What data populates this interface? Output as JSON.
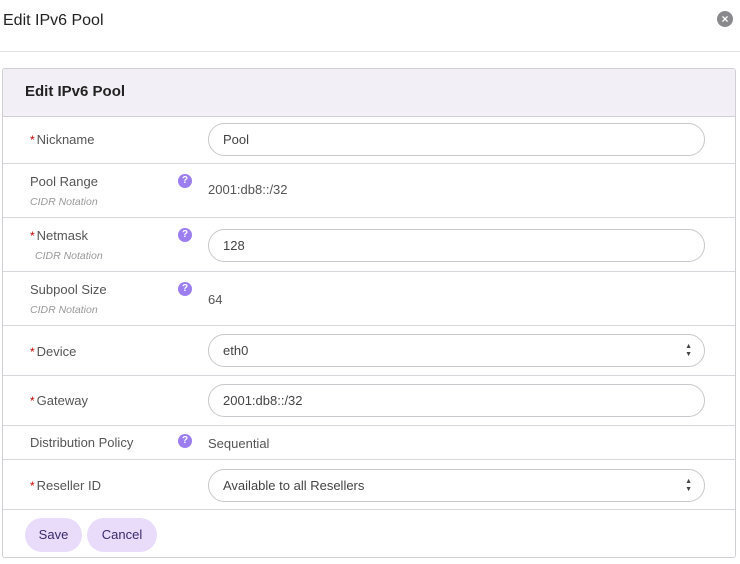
{
  "dialog": {
    "title": "Edit IPv6 Pool",
    "close_icon": "close-icon"
  },
  "panel": {
    "title": "Edit IPv6 Pool"
  },
  "fields": {
    "nickname": {
      "label": "Nickname",
      "value": "Pool",
      "required": true
    },
    "pool_range": {
      "label": "Pool Range",
      "hint": "CIDR Notation",
      "value": "2001:db8::/32"
    },
    "netmask": {
      "label": "Netmask",
      "hint": "CIDR Notation",
      "value": "128",
      "required": true
    },
    "subpool_size": {
      "label": "Subpool Size",
      "hint": "CIDR Notation",
      "value": "64"
    },
    "device": {
      "label": "Device",
      "value": "eth0",
      "required": true
    },
    "gateway": {
      "label": "Gateway",
      "value": "2001:db8::/32",
      "required": true
    },
    "distribution_policy": {
      "label": "Distribution Policy",
      "value": "Sequential"
    },
    "reseller_id": {
      "label": "Reseller ID",
      "value": "Available to all Resellers",
      "required": true
    }
  },
  "required_mark": "*",
  "help_mark": "?",
  "actions": {
    "save": "Save",
    "cancel": "Cancel"
  },
  "colors": {
    "accent": "#9c7ef0",
    "button_bg": "#e8dcfa",
    "header_bg": "#f3eff6",
    "required": "#cc0000"
  }
}
